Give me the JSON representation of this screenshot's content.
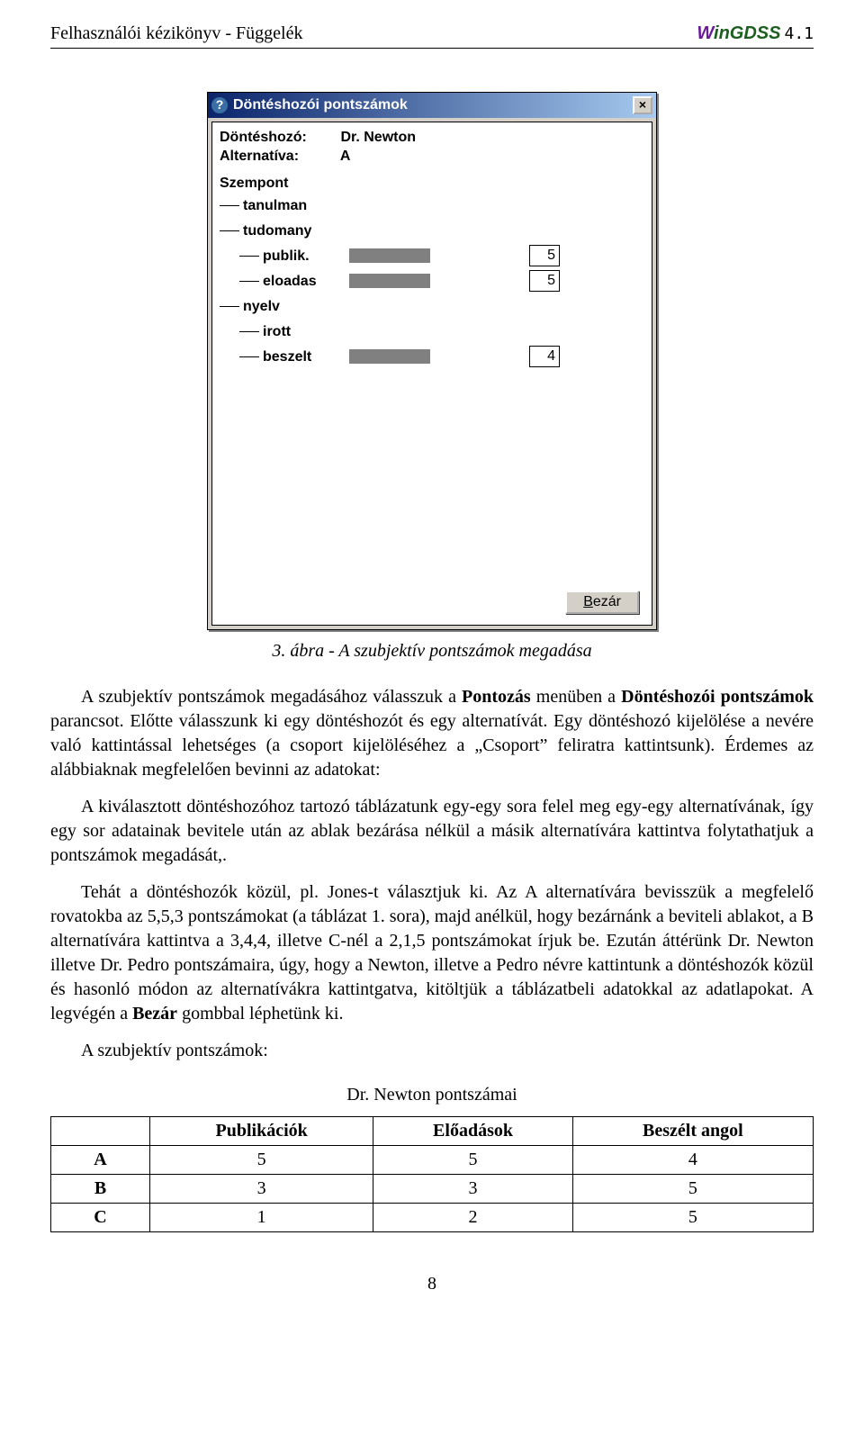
{
  "header": {
    "left": "Felhasználói kézikönyv - Függelék",
    "logo_word1": "W",
    "logo_word2": "inGDSS",
    "logo_version": "4.1"
  },
  "dialog": {
    "title": "Döntéshozói pontszámok",
    "close_glyph": "×",
    "help_glyph": "?",
    "dm_label": "Döntéshozó:",
    "dm_value": "Dr. Newton",
    "alt_label": "Alternatíva:",
    "alt_value": "A",
    "root": "Szempont",
    "rows": [
      {
        "level": 1,
        "label": "tanulman",
        "has_block": false,
        "score": ""
      },
      {
        "level": 1,
        "label": "tudomany",
        "has_block": false,
        "score": ""
      },
      {
        "level": 2,
        "label": "publik.",
        "has_block": true,
        "score": "5"
      },
      {
        "level": 2,
        "label": "eloadas",
        "has_block": true,
        "score": "5"
      },
      {
        "level": 1,
        "label": "nyelv",
        "has_block": false,
        "score": ""
      },
      {
        "level": 2,
        "label": "irott",
        "has_block": false,
        "score": ""
      },
      {
        "level": 2,
        "label": "beszelt",
        "has_block": true,
        "score": "4"
      }
    ],
    "close_button": "Bezár",
    "close_button_html": "<u>B</u>ezár"
  },
  "caption": "3. ábra - A szubjektív pontszámok megadása",
  "paragraphs": {
    "p1a": "A szubjektív pontszámok megadásához válasszuk a ",
    "p1b": "Pontozás",
    "p1c": " menüben a ",
    "p1d": "Döntéshozói pontszámok",
    "p1e": " parancsot. Előtte válasszunk ki egy döntéshozót és egy alternatívát. Egy döntéshozó kijelölése a nevére való kattintással lehetséges (a csoport kijelöléséhez a „Csoport” feliratra kattintsunk). Érdemes az alábbiaknak megfelelően bevinni az adatokat:",
    "p2": "A kiválasztott döntéshozóhoz tartozó táblázatunk egy-egy sora felel meg egy-egy alternatívának, így egy sor adatainak bevitele után az ablak bezárása nélkül a másik alternatívára kattintva folytathatjuk a pontszámok megadását,.",
    "p3a": "Tehát a döntéshozók közül, pl. Jones-t választjuk ki. Az A alternatívára bevisszük a megfelelő rovatokba az 5,5,3 pontszámokat (a táblázat 1. sora), majd anélkül, hogy bezárnánk a beviteli ablakot, a B alternatívára kattintva a 3,4,4, illetve C-nél a 2,1,5 pontszámokat írjuk be. Ezután áttérünk Dr. Newton illetve Dr. Pedro pontszámaira, úgy, hogy a Newton, illetve a Pedro névre kattintunk a döntéshozók közül és hasonló módon az alternatívákra kattintgatva, kitöltjük a táblázatbeli adatokkal az adatlapokat. A legvégén a ",
    "p3b": "Bezár",
    "p3c": " gombbal léphetünk ki.",
    "p4": "A szubjektív pontszámok:"
  },
  "table": {
    "caption": "Dr. Newton pontszámai",
    "columns": [
      "",
      "Publikációk",
      "Előadások",
      "Beszélt angol"
    ],
    "rows": [
      [
        "A",
        "5",
        "5",
        "4"
      ],
      [
        "B",
        "3",
        "3",
        "5"
      ],
      [
        "C",
        "1",
        "2",
        "5"
      ]
    ]
  },
  "page_number": "8"
}
